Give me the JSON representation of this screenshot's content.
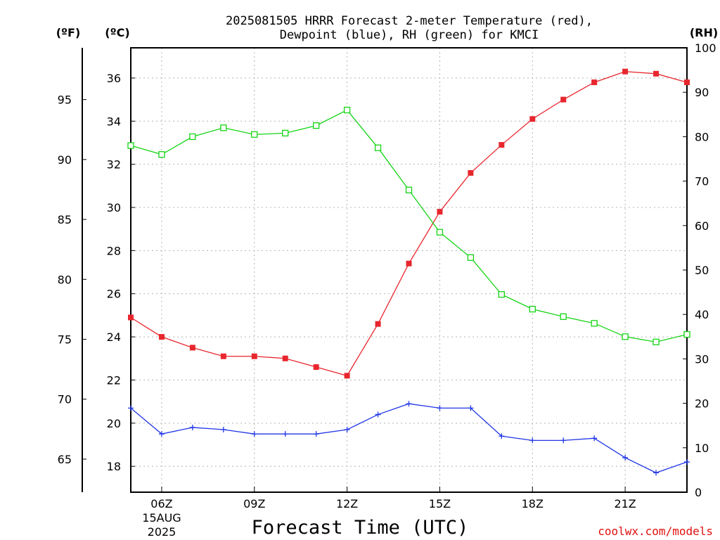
{
  "title_line1": "2025081505 HRRR Forecast 2-meter Temperature (red),",
  "title_line2": "Dewpoint (blue), RH (green) for KMCI",
  "unit_f": "(ºF)",
  "unit_c": "(ºC)",
  "unit_rh": "(RH)",
  "date_line1": "15AUG",
  "date_line2": "2025",
  "credit": "coolwx.com/models",
  "chart_data": {
    "type": "line",
    "title": "2025081505 HRRR Forecast 2-meter Temperature (red), Dewpoint (blue), RH (green) for KMCI",
    "xlabel": "Forecast Time (UTC)",
    "x": [
      "05Z",
      "06Z",
      "07Z",
      "08Z",
      "09Z",
      "10Z",
      "11Z",
      "12Z",
      "13Z",
      "14Z",
      "15Z",
      "16Z",
      "17Z",
      "18Z",
      "19Z",
      "20Z",
      "21Z",
      "22Z",
      "23Z"
    ],
    "x_tick_labels": [
      "06Z",
      "09Z",
      "12Z",
      "15Z",
      "18Z",
      "21Z"
    ],
    "xlim": [
      "05Z",
      "23Z"
    ],
    "ylabel_left_outer": "(ºF)",
    "ylabel_left_inner": "(ºC)",
    "ylabel_right": "(RH)",
    "ylim_c": [
      16.8,
      37.4
    ],
    "ylim_rh": [
      0,
      100
    ],
    "yticks_c": [
      18,
      20,
      22,
      24,
      26,
      28,
      30,
      32,
      34,
      36
    ],
    "yticks_f": [
      65,
      70,
      75,
      80,
      85,
      90,
      95
    ],
    "yticks_rh": [
      0,
      10,
      20,
      30,
      40,
      50,
      60,
      70,
      80,
      90,
      100
    ],
    "grid": true,
    "series": [
      {
        "name": "Temperature",
        "axis": "C",
        "color": "#e8262d",
        "marker": "filled-square",
        "values": [
          24.9,
          24.0,
          23.5,
          23.1,
          23.1,
          23.0,
          22.6,
          22.2,
          24.6,
          27.4,
          29.8,
          31.6,
          32.9,
          34.1,
          35.0,
          35.8,
          36.3,
          36.2,
          35.8
        ]
      },
      {
        "name": "Dewpoint",
        "axis": "C",
        "color": "#2137e6",
        "marker": "plus",
        "values": [
          20.7,
          19.5,
          19.8,
          19.7,
          19.5,
          19.5,
          19.5,
          19.7,
          20.4,
          20.9,
          20.7,
          20.7,
          19.4,
          19.2,
          19.2,
          19.3,
          18.4,
          17.7,
          18.2
        ]
      },
      {
        "name": "RH",
        "axis": "RH",
        "color": "#15d415",
        "marker": "open-square",
        "values": [
          78.0,
          76.0,
          80.0,
          82.0,
          80.5,
          80.8,
          82.5,
          86.0,
          77.5,
          68.0,
          58.5,
          52.8,
          44.5,
          41.2,
          39.5,
          38.0,
          35.0,
          33.8,
          35.5
        ]
      }
    ]
  }
}
